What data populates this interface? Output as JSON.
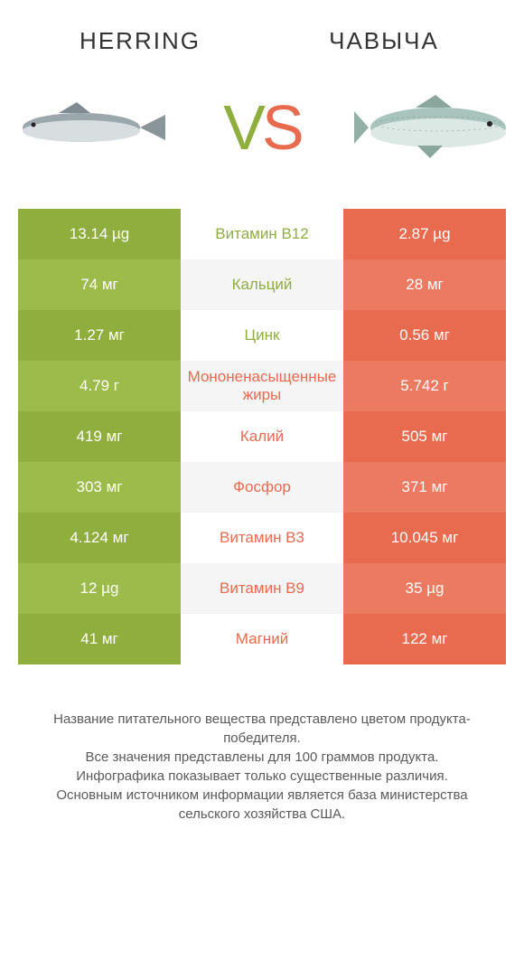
{
  "header": {
    "left": "HERRING",
    "right": "ЧАВЫЧА"
  },
  "vs": {
    "v": "V",
    "s": "S"
  },
  "colors": {
    "green_a": "#8fae3e",
    "green_b": "#9cbb4a",
    "orange_a": "#e86a4f",
    "orange_b": "#eb7a60",
    "mid_a": "#ffffff",
    "mid_b": "#f5f5f5",
    "text_green": "#8fae3e",
    "text_orange": "#e86a4f",
    "footer_text": "#5a5a5a"
  },
  "rows": [
    {
      "left": "13.14 µg",
      "mid": "Витамин B12",
      "right": "2.87 µg",
      "winner": "left"
    },
    {
      "left": "74 мг",
      "mid": "Кальций",
      "right": "28 мг",
      "winner": "left"
    },
    {
      "left": "1.27 мг",
      "mid": "Цинк",
      "right": "0.56 мг",
      "winner": "left"
    },
    {
      "left": "4.79 г",
      "mid": "Мононенасыщенные жиры",
      "right": "5.742 г",
      "winner": "right"
    },
    {
      "left": "419 мг",
      "mid": "Калий",
      "right": "505 мг",
      "winner": "right"
    },
    {
      "left": "303 мг",
      "mid": "Фосфор",
      "right": "371 мг",
      "winner": "right"
    },
    {
      "left": "4.124 мг",
      "mid": "Витамин B3",
      "right": "10.045 мг",
      "winner": "right"
    },
    {
      "left": "12 µg",
      "mid": "Витамин B9",
      "right": "35 µg",
      "winner": "right"
    },
    {
      "left": "41 мг",
      "mid": "Магний",
      "right": "122 мг",
      "winner": "right"
    }
  ],
  "footer": {
    "l1": "Название питательного вещества представлено цветом продукта-победителя.",
    "l2": "Все значения представлены для 100 граммов продукта.",
    "l3": "Инфографика показывает только существенные различия.",
    "l4": "Основным источником информации является база министерства сельского хозяйства США."
  }
}
